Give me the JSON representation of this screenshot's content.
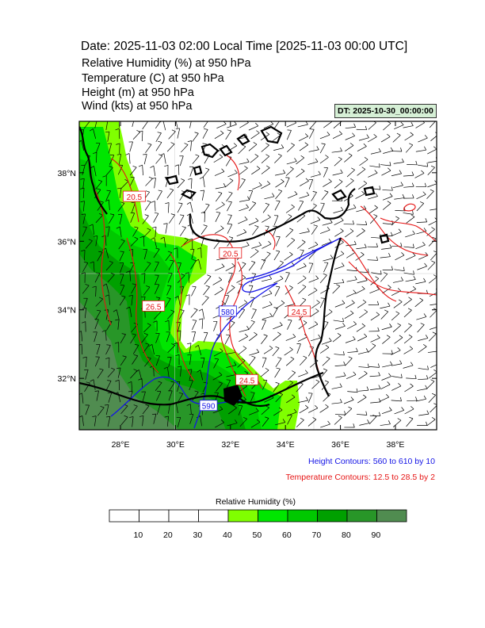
{
  "header": {
    "title": "Date: 2025-11-03  02:00 Local Time [2025-11-03  00:00 UTC]",
    "info_lines": [
      "Relative Humidity   (%)     at   950 hPa",
      "Temperature   (C)     at   950 hPa",
      "Height   (m)     at   950 hPa",
      "Wind   (kts)     at   950 hPa"
    ],
    "dt_badge": "DT: 2025-10-30_00:00:00"
  },
  "map": {
    "lon_range": [
      26.5,
      39.5
    ],
    "lat_range": [
      30.5,
      39.5
    ],
    "lat_ticks": [
      {
        "value": 32,
        "label": "32°N"
      },
      {
        "value": 34,
        "label": "34°N"
      },
      {
        "value": 36,
        "label": "36°N"
      },
      {
        "value": 38,
        "label": "38°N"
      }
    ],
    "lon_ticks": [
      {
        "value": 28,
        "label": "28°E"
      },
      {
        "value": 30,
        "label": "30°E"
      },
      {
        "value": 32,
        "label": "32°E"
      },
      {
        "value": 34,
        "label": "34°E"
      },
      {
        "value": 36,
        "label": "36°E"
      },
      {
        "value": 38,
        "label": "38°E"
      }
    ],
    "contour_labels": [
      {
        "text": "20.5",
        "lon": 28.5,
        "lat": 37.3,
        "color": "#e61414"
      },
      {
        "text": "20.5",
        "lon": 32.0,
        "lat": 35.65,
        "color": "#e61414"
      },
      {
        "text": "26.5",
        "lon": 29.2,
        "lat": 34.1,
        "color": "#e61414"
      },
      {
        "text": "580",
        "lon": 31.9,
        "lat": 33.95,
        "color": "#1414e6"
      },
      {
        "text": "24.5",
        "lon": 34.5,
        "lat": 33.95,
        "color": "#e61414"
      },
      {
        "text": "24.5",
        "lon": 32.6,
        "lat": 31.95,
        "color": "#e61414"
      },
      {
        "text": "590",
        "lon": 31.2,
        "lat": 31.2,
        "color": "#1414e6"
      }
    ],
    "colors": {
      "land_border": "#000000",
      "temperature_contour": "#e61414",
      "height_contour": "#1414e6",
      "wind_barb": "#000000"
    }
  },
  "notes": {
    "height_contours": "Height Contours: 560 to 610 by 10",
    "temperature_contours": "Temperature Contours: 12.5 to 28.5 by 2"
  },
  "colorbar": {
    "title": "Relative Humidity  (%)",
    "labels": [
      "10",
      "20",
      "30",
      "40",
      "50",
      "60",
      "70",
      "80",
      "90"
    ],
    "colors": [
      "#ffffff",
      "#ffffff",
      "#ffffff",
      "#ffffff",
      "#80ff00",
      "#00e600",
      "#00c800",
      "#00a000",
      "#289628",
      "#508c50"
    ]
  }
}
